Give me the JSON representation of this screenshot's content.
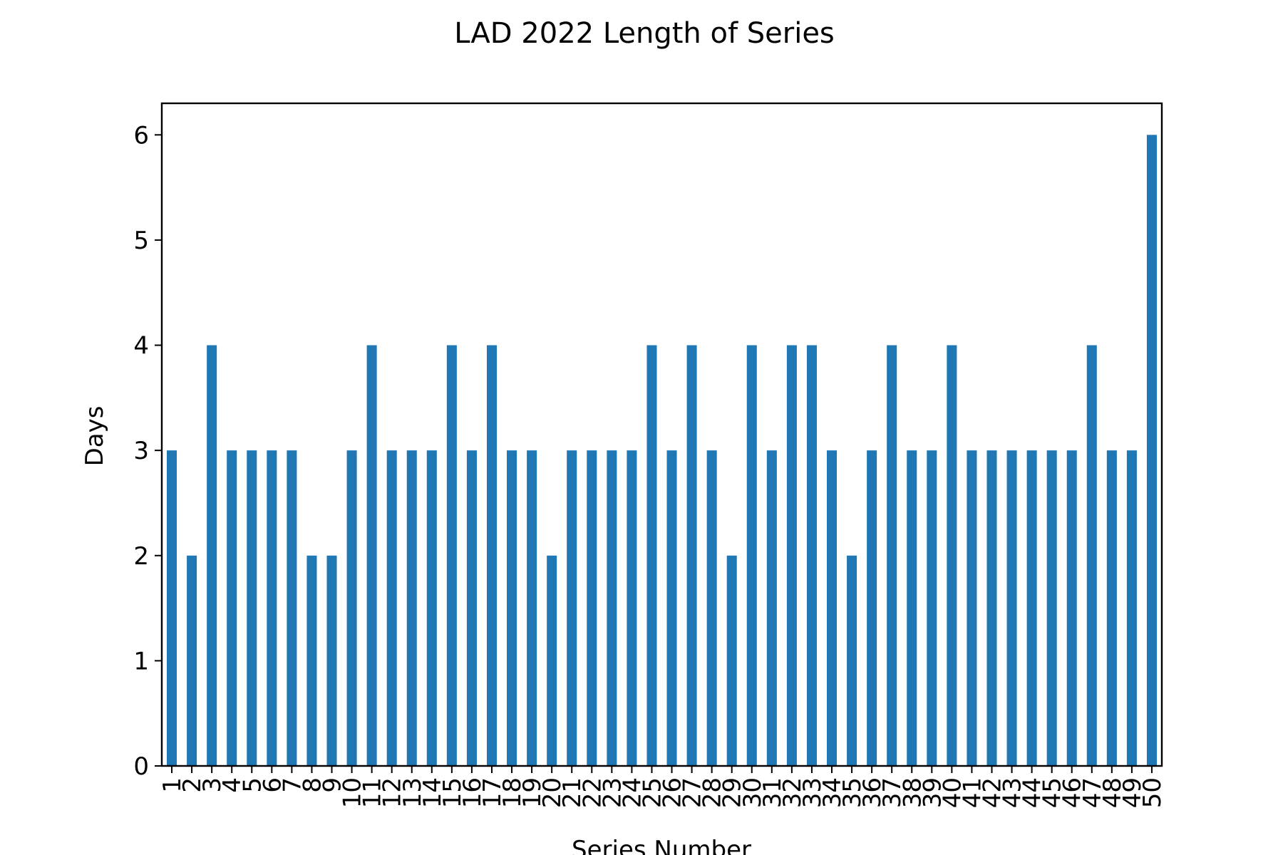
{
  "chart_data": {
    "type": "bar",
    "title": "LAD 2022 Length of Series",
    "xlabel": "Series Number",
    "ylabel": "Days",
    "categories": [
      "1",
      "2",
      "3",
      "4",
      "5",
      "6",
      "7",
      "8",
      "9",
      "10",
      "11",
      "12",
      "13",
      "14",
      "15",
      "16",
      "17",
      "18",
      "19",
      "20",
      "21",
      "22",
      "23",
      "24",
      "25",
      "26",
      "27",
      "28",
      "29",
      "30",
      "31",
      "32",
      "33",
      "34",
      "35",
      "36",
      "37",
      "38",
      "39",
      "40",
      "41",
      "42",
      "43",
      "44",
      "45",
      "46",
      "47",
      "48",
      "49",
      "50"
    ],
    "values": [
      3,
      2,
      4,
      3,
      3,
      3,
      3,
      2,
      2,
      3,
      4,
      3,
      3,
      3,
      4,
      3,
      4,
      3,
      3,
      2,
      3,
      3,
      3,
      3,
      4,
      3,
      4,
      3,
      2,
      4,
      3,
      4,
      4,
      3,
      2,
      3,
      4,
      3,
      3,
      4,
      3,
      3,
      3,
      3,
      3,
      3,
      4,
      3,
      3,
      6
    ],
    "yticks": [
      0,
      1,
      2,
      3,
      4,
      5,
      6
    ],
    "ylim": [
      0,
      6.3
    ],
    "grid": false,
    "legend": "none",
    "bar_color": "#1f77b4"
  }
}
